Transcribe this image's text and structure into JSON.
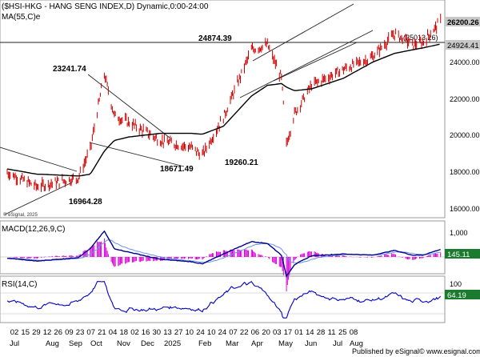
{
  "header": {
    "title": "($HSI-HKG - HANG SENG INDEX,D) Dynamic,0:00-24:00",
    "ma_label": "MA(55,C)e"
  },
  "price_axis": {
    "ticks": [
      "24000.00",
      "22000.00",
      "20000.00",
      "18000.00",
      "16000.00"
    ],
    "last_price": "26200.26",
    "ma_value": "24924.41",
    "resistance_label": "(25013.26)"
  },
  "annotations": {
    "peak_oct": "23241.74",
    "low_jan": "18671.49",
    "peak_mar": "24874.39",
    "low_apr": "19260.21",
    "low_aug": "16964.28"
  },
  "copyright": "© eSignal, 2025",
  "macd": {
    "label": "MACD(12,26,9,C)",
    "tick": "1,000",
    "value": "145.11"
  },
  "rsi": {
    "label": "RSI(14,C)",
    "tick": "100",
    "value": "64.19"
  },
  "x_axis": {
    "day_ticks": [
      "02",
      "15",
      "29",
      "12",
      "26",
      "09",
      "23",
      "07",
      "21",
      "04",
      "18",
      "02",
      "16",
      "30",
      "13",
      "27",
      "10",
      "24",
      "10",
      "24",
      "07",
      "22",
      "06",
      "20",
      "03",
      "17",
      "01",
      "14",
      "28",
      "11",
      "25",
      "08"
    ],
    "month_labels": [
      "Jul",
      "Aug",
      "Sep",
      "Oct",
      "Nov",
      "Dec",
      "2025",
      "Feb",
      "Mar",
      "Apr",
      "May",
      "Jun",
      "Jul",
      "Aug",
      "Sep"
    ]
  },
  "footer": {
    "text": "Published by eSignal",
    "url": "© www.esignal.com"
  },
  "colors": {
    "price": "#cc0000",
    "ma": "#000000",
    "macd": "#00008b",
    "signal": "#6495ed",
    "hist": "#d800d8",
    "rsi": "#0000cc",
    "tag": "#1a7a2e",
    "trend": "#222222"
  },
  "chart_data": {
    "type": "line",
    "x": [
      "2024-07-02",
      "2024-08-01",
      "2024-08-05",
      "2024-09-11",
      "2024-09-23",
      "2024-10-07",
      "2024-10-17",
      "2024-11-01",
      "2024-12-02",
      "2025-01-02",
      "2025-01-13",
      "2025-02-03",
      "2025-03-03",
      "2025-03-19",
      "2025-04-02",
      "2025-04-07",
      "2025-04-15",
      "2025-05-02",
      "2025-06-03",
      "2025-07-02",
      "2025-07-24",
      "2025-08-11",
      "2025-08-21",
      "2025-09-08"
    ],
    "series": [
      {
        "name": "HSI",
        "values": [
          17700,
          16900,
          16964,
          17400,
          19000,
          23242,
          20900,
          20500,
          19500,
          19100,
          18671,
          20800,
          24600,
          24874,
          23000,
          19260,
          21000,
          22600,
          23500,
          24200,
          25500,
          24900,
          25000,
          26200
        ]
      },
      {
        "name": "MA(55,C)e",
        "values": [
          17900,
          17600,
          17600,
          17500,
          17600,
          18900,
          19500,
          19700,
          19900,
          19900,
          19850,
          20300,
          22000,
          22600,
          22700,
          22500,
          22300,
          22400,
          23000,
          23900,
          24400,
          24600,
          24700,
          24924
        ]
      }
    ],
    "ylim": [
      15200,
      27400
    ],
    "indicators": {
      "macd": {
        "ticks": [
          1000
        ],
        "last": 145.11,
        "signal_last": 120
      },
      "rsi": {
        "ticks": [
          100
        ],
        "last": 64.19
      }
    }
  }
}
